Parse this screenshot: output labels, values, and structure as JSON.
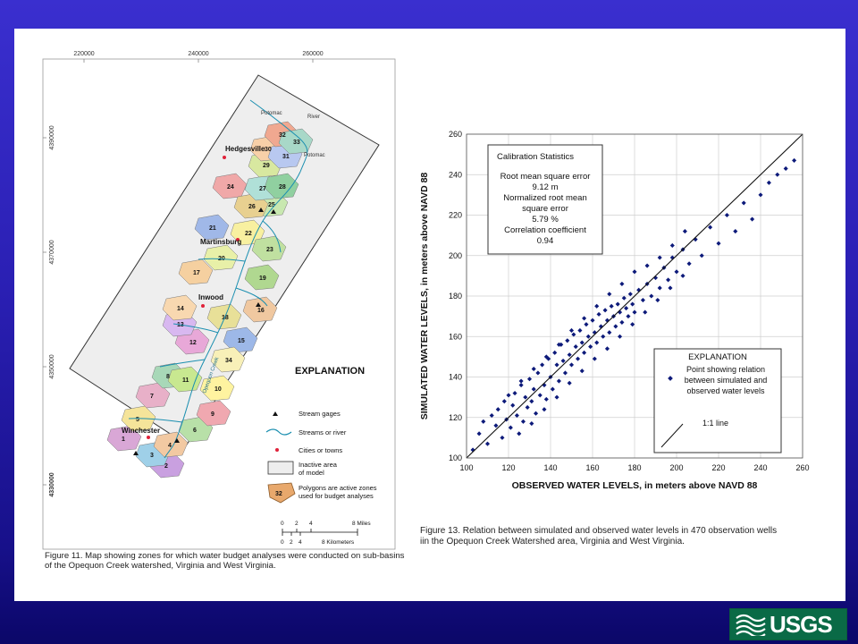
{
  "map": {
    "x_ticks": [
      "220000",
      "240000",
      "260000"
    ],
    "y_ticks": [
      "4390000",
      "4370000",
      "4350000",
      "4330000"
    ],
    "towns": [
      "Hedgesville",
      "Martinsburg",
      "Inwood",
      "Winchester"
    ],
    "water_labels": [
      "Potomac",
      "River",
      "Potomac"
    ],
    "creek_label": "Opequon Creek",
    "zone_numbers": [
      "1",
      "2",
      "3",
      "4",
      "5",
      "6",
      "7",
      "8",
      "9",
      "10",
      "11",
      "12",
      "13",
      "14",
      "15",
      "16",
      "17",
      "18",
      "19",
      "20",
      "21",
      "22",
      "23",
      "24",
      "25",
      "26",
      "27",
      "28",
      "29",
      "30",
      "31",
      "32",
      "33",
      "34"
    ],
    "legend": {
      "title": "EXPLANATION",
      "stream_gages": "Stream gages",
      "streams": "Streams or river",
      "cities": "Cities or towns",
      "inactive": "Inactive area",
      "inactive2": "of model",
      "polygons": "Polygons are active zones",
      "polygons2": "used for budget analyses",
      "polygon_sample": "32",
      "miles_ticks": [
        "0",
        "2",
        "4",
        "8 Miles"
      ],
      "km_ticks": [
        "0",
        "2",
        "4",
        "8 Kilometers"
      ]
    },
    "caption_line1": "Figure 11. Map showing zones for which water budget analyses were conducted on sub-basins",
    "caption_line2": "of the Opequon Creek watershed, Virginia and West Virginia."
  },
  "chart_data": {
    "type": "scatter",
    "xlabel": "OBSERVED WATER LEVELS, in meters above NAVD 88",
    "ylabel": "SIMULATED WATER LEVELS, in meters above NAVD 88",
    "xlim": [
      100,
      260
    ],
    "ylim": [
      100,
      260
    ],
    "x_ticks": [
      "100",
      "120",
      "140",
      "160",
      "180",
      "200",
      "220",
      "240",
      "260"
    ],
    "y_ticks": [
      "100",
      "120",
      "140",
      "160",
      "180",
      "200",
      "220",
      "240",
      "260"
    ],
    "grid": true,
    "point_count": 470,
    "reference_line": {
      "label": "1:1 line",
      "from": [
        100,
        100
      ],
      "to": [
        260,
        260
      ]
    },
    "stats_box": {
      "title": "Calibration Statistics",
      "lines": [
        "Root mean square error",
        "9.12 m",
        "Normalized root mean",
        "square error",
        "5.79 %",
        "Correlation coefficient",
        "0.94"
      ]
    },
    "legend": {
      "title": "EXPLANATION",
      "lines": [
        "Point showing relation",
        "between simulated and",
        "observed water levels"
      ],
      "line_label": "1:1 line"
    },
    "series": [
      {
        "points": [
          [
            103,
            104
          ],
          [
            106,
            112
          ],
          [
            108,
            118
          ],
          [
            110,
            107
          ],
          [
            112,
            121
          ],
          [
            114,
            116
          ],
          [
            115,
            124
          ],
          [
            117,
            110
          ],
          [
            118,
            128
          ],
          [
            119,
            119
          ],
          [
            121,
            115
          ],
          [
            122,
            126
          ],
          [
            123,
            132
          ],
          [
            124,
            121
          ],
          [
            126,
            136
          ],
          [
            127,
            118
          ],
          [
            128,
            130
          ],
          [
            129,
            125
          ],
          [
            130,
            139
          ],
          [
            131,
            128
          ],
          [
            132,
            134
          ],
          [
            133,
            122
          ],
          [
            134,
            142
          ],
          [
            135,
            131
          ],
          [
            136,
            146
          ],
          [
            137,
            136
          ],
          [
            138,
            129
          ],
          [
            139,
            149
          ],
          [
            140,
            140
          ],
          [
            141,
            134
          ],
          [
            142,
            152
          ],
          [
            143,
            146
          ],
          [
            144,
            138
          ],
          [
            145,
            156
          ],
          [
            146,
            148
          ],
          [
            147,
            142
          ],
          [
            148,
            158
          ],
          [
            149,
            151
          ],
          [
            150,
            146
          ],
          [
            151,
            161
          ],
          [
            152,
            155
          ],
          [
            153,
            149
          ],
          [
            154,
            163
          ],
          [
            155,
            157
          ],
          [
            156,
            152
          ],
          [
            157,
            166
          ],
          [
            158,
            160
          ],
          [
            159,
            155
          ],
          [
            160,
            168
          ],
          [
            161,
            162
          ],
          [
            162,
            157
          ],
          [
            163,
            171
          ],
          [
            164,
            165
          ],
          [
            165,
            160
          ],
          [
            166,
            173
          ],
          [
            167,
            168
          ],
          [
            168,
            162
          ],
          [
            169,
            175
          ],
          [
            170,
            170
          ],
          [
            171,
            165
          ],
          [
            172,
            176
          ],
          [
            173,
            172
          ],
          [
            174,
            167
          ],
          [
            175,
            179
          ],
          [
            176,
            174
          ],
          [
            177,
            170
          ],
          [
            178,
            181
          ],
          [
            179,
            176
          ],
          [
            180,
            172
          ],
          [
            182,
            183
          ],
          [
            184,
            178
          ],
          [
            186,
            186
          ],
          [
            188,
            180
          ],
          [
            190,
            189
          ],
          [
            192,
            184
          ],
          [
            194,
            194
          ],
          [
            196,
            188
          ],
          [
            198,
            199
          ],
          [
            200,
            192
          ],
          [
            203,
            203
          ],
          [
            206,
            196
          ],
          [
            209,
            208
          ],
          [
            212,
            200
          ],
          [
            216,
            214
          ],
          [
            220,
            206
          ],
          [
            224,
            220
          ],
          [
            228,
            212
          ],
          [
            232,
            226
          ],
          [
            236,
            218
          ],
          [
            240,
            230
          ],
          [
            244,
            236
          ],
          [
            248,
            240
          ],
          [
            252,
            243
          ],
          [
            256,
            247
          ],
          [
            125,
            112
          ],
          [
            131,
            117
          ],
          [
            137,
            124
          ],
          [
            143,
            130
          ],
          [
            149,
            137
          ],
          [
            155,
            143
          ],
          [
            161,
            149
          ],
          [
            167,
            154
          ],
          [
            173,
            160
          ],
          [
            179,
            166
          ],
          [
            185,
            172
          ],
          [
            191,
            178
          ],
          [
            197,
            184
          ],
          [
            203,
            190
          ],
          [
            120,
            131
          ],
          [
            126,
            138
          ],
          [
            132,
            144
          ],
          [
            138,
            150
          ],
          [
            144,
            156
          ],
          [
            150,
            163
          ],
          [
            156,
            169
          ],
          [
            162,
            175
          ],
          [
            168,
            181
          ],
          [
            174,
            186
          ],
          [
            180,
            192
          ],
          [
            186,
            195
          ],
          [
            192,
            199
          ],
          [
            198,
            205
          ],
          [
            204,
            212
          ]
        ]
      }
    ],
    "caption_line1": "Figure 13. Relation between simulated and observed water levels in 470 observation wells",
    "caption_line2": "iin the Opequon Creek Watershed area, Virginia and West Virginia."
  },
  "logo": {
    "text": "USGS"
  }
}
